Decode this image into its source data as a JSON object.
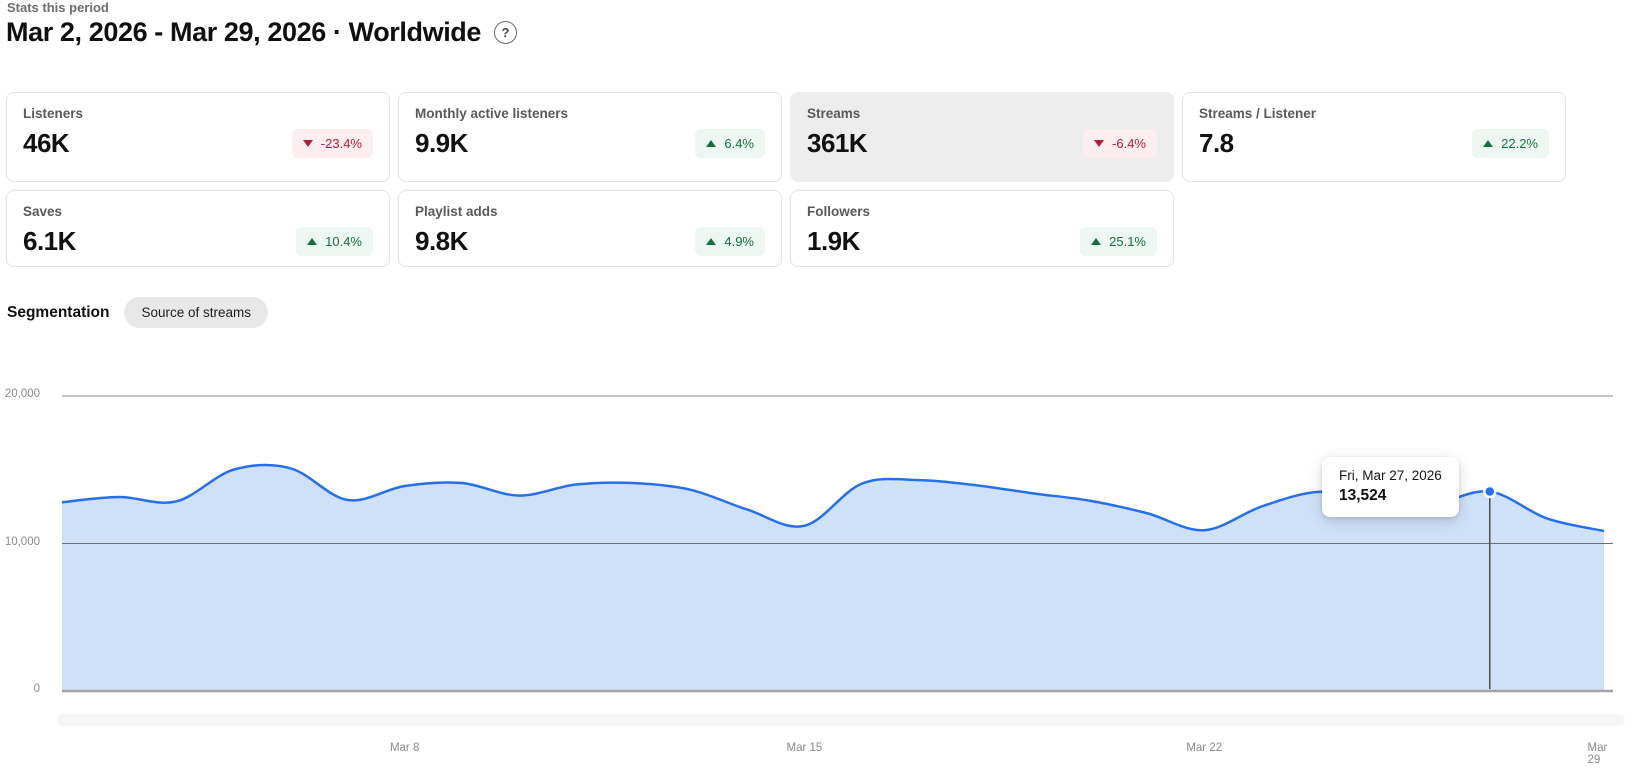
{
  "header": {
    "eyebrow": "Stats this period",
    "title": "Mar 2, 2026 - Mar 29, 2026 · Worldwide",
    "help_icon": "?"
  },
  "stat_cards": [
    {
      "label": "Listeners",
      "value": "46K",
      "delta": "-23.4%",
      "direction": "down",
      "selected": false
    },
    {
      "label": "Monthly active listeners",
      "value": "9.9K",
      "delta": "6.4%",
      "direction": "up",
      "selected": false
    },
    {
      "label": "Streams",
      "value": "361K",
      "delta": "-6.4%",
      "direction": "down",
      "selected": true
    },
    {
      "label": "Streams / Listener",
      "value": "7.8",
      "delta": "22.2%",
      "direction": "up",
      "selected": false
    },
    {
      "label": "Saves",
      "value": "6.1K",
      "delta": "10.4%",
      "direction": "up",
      "selected": false
    },
    {
      "label": "Playlist adds",
      "value": "9.8K",
      "delta": "4.9%",
      "direction": "up",
      "selected": false
    },
    {
      "label": "Followers",
      "value": "1.9K",
      "delta": "25.1%",
      "direction": "up",
      "selected": false
    }
  ],
  "segmentation": {
    "label": "Segmentation",
    "chip": "Source of streams"
  },
  "chart_data": {
    "type": "area",
    "x_start_label": "Mar 2, 2026",
    "x_end_label": "Mar 29, 2026",
    "values": [
      12800,
      13150,
      12850,
      15000,
      15100,
      12950,
      13900,
      14100,
      13250,
      14000,
      14100,
      13650,
      12300,
      11200,
      14050,
      14300,
      13950,
      13400,
      12900,
      12050,
      10900,
      12500,
      13500,
      13000,
      12700,
      13524,
      11700,
      10850
    ],
    "ylim": [
      0,
      20000
    ],
    "y_ticks": [
      {
        "value": 0,
        "label": "0"
      },
      {
        "value": 10000,
        "label": "10,000"
      },
      {
        "value": 20000,
        "label": "20,000"
      }
    ],
    "x_ticks": [
      {
        "index": 6,
        "label": "Mar 8"
      },
      {
        "index": 13,
        "label": "Mar 15"
      },
      {
        "index": 20,
        "label": "Mar 22"
      },
      {
        "index": 27,
        "label": "Mar 29"
      }
    ],
    "grid": "horizontal-only",
    "legend": "none",
    "marker": {
      "index": 25,
      "date_label": "Fri, Mar 27, 2026",
      "value": 13524,
      "value_label": "13,524"
    }
  },
  "colors": {
    "accent_line": "#2570e8",
    "area_fill": "#cfe1f8",
    "marker_line": "#4a4a4a",
    "positive_text": "#14713f",
    "positive_bg": "#edf6f0",
    "negative_text": "#b01e3c",
    "negative_bg": "#fcedef",
    "selected_card_bg": "#ededed",
    "grid_lines": {
      "0": {
        "c": "#a3a3a3",
        "w": 2.4
      },
      "10000": {
        "c": "#6f6f6f",
        "w": 1
      },
      "20000": {
        "c": "#c6c6c6",
        "w": 2
      }
    }
  }
}
